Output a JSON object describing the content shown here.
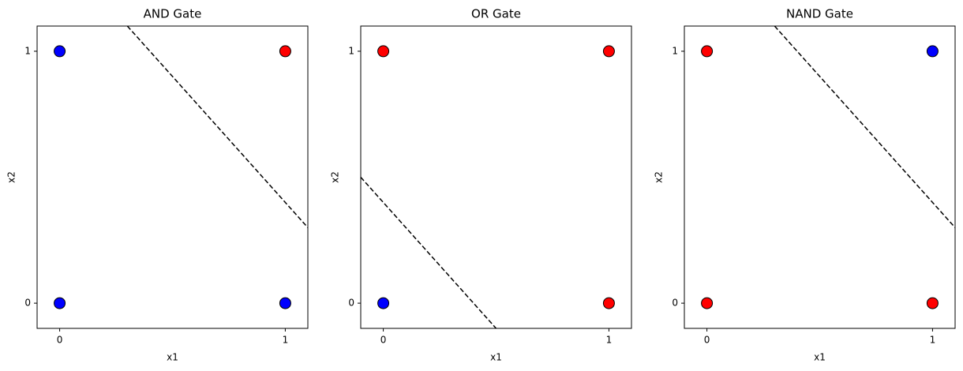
{
  "chart_data": [
    {
      "type": "scatter",
      "title": "AND Gate",
      "x_label": "x1",
      "y_label": "x2",
      "x": [
        0,
        0,
        1,
        1
      ],
      "y": [
        0,
        1,
        0,
        1
      ],
      "point_colors": [
        "#0000ff",
        "#0000ff",
        "#0000ff",
        "#ff0000"
      ],
      "boundary": {
        "x": [
          0.3,
          1.1
        ],
        "y": [
          1.1,
          0.3
        ],
        "color": "#000000",
        "dashed": true
      },
      "xlim": [
        -0.1,
        1.1
      ],
      "ylim": [
        -0.1,
        1.1
      ],
      "xticks": [
        0,
        1
      ],
      "yticks": [
        0,
        1
      ]
    },
    {
      "type": "scatter",
      "title": "OR Gate",
      "x_label": "x1",
      "y_label": "x2",
      "x": [
        0,
        0,
        1,
        1
      ],
      "y": [
        0,
        1,
        0,
        1
      ],
      "point_colors": [
        "#0000ff",
        "#ff0000",
        "#ff0000",
        "#ff0000"
      ],
      "boundary": {
        "x": [
          -0.1,
          0.5
        ],
        "y": [
          0.5,
          -0.1
        ],
        "color": "#000000",
        "dashed": true
      },
      "xlim": [
        -0.1,
        1.1
      ],
      "ylim": [
        -0.1,
        1.1
      ],
      "xticks": [
        0,
        1
      ],
      "yticks": [
        0,
        1
      ]
    },
    {
      "type": "scatter",
      "title": "NAND Gate",
      "x_label": "x1",
      "y_label": "x2",
      "x": [
        0,
        0,
        1,
        1
      ],
      "y": [
        0,
        1,
        0,
        1
      ],
      "point_colors": [
        "#ff0000",
        "#ff0000",
        "#ff0000",
        "#0000ff"
      ],
      "boundary": {
        "x": [
          0.3,
          1.1
        ],
        "y": [
          1.1,
          0.3
        ],
        "color": "#000000",
        "dashed": true
      },
      "xlim": [
        -0.1,
        1.1
      ],
      "ylim": [
        -0.1,
        1.1
      ],
      "xticks": [
        0,
        1
      ],
      "yticks": [
        0,
        1
      ]
    }
  ]
}
